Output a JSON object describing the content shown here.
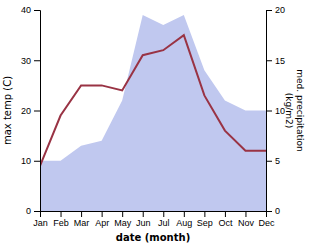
{
  "chart_data": {
    "type": "line",
    "categories": [
      "Jan",
      "Feb",
      "Mar",
      "Apr",
      "May",
      "Jun",
      "Jul",
      "Aug",
      "Sep",
      "Oct",
      "Nov",
      "Dec"
    ],
    "series": [
      {
        "type": "area",
        "color": "#c0c8ef",
        "values": [
          10,
          10,
          13,
          14,
          22,
          39,
          37,
          39,
          28,
          22,
          20,
          20
        ]
      },
      {
        "type": "line",
        "color": "#993344",
        "values": [
          9,
          19,
          25,
          25,
          24,
          31,
          32,
          35,
          23,
          16,
          12,
          12
        ]
      }
    ],
    "xlabel": "date (month)",
    "ylabel": "max temp (C)",
    "y2label": "med. precipitation\n(kg/m2)",
    "ylim": [
      0,
      40
    ],
    "yticks": [
      0,
      10,
      20,
      30,
      40
    ],
    "y2lim": [
      0,
      20
    ],
    "y2ticks": [
      0,
      5,
      10,
      15,
      20
    ]
  }
}
